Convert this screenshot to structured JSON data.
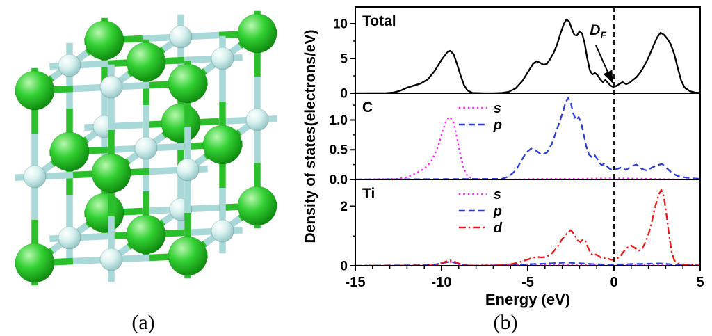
{
  "figure": {
    "caption_a": "(a)",
    "caption_b": "(b)"
  },
  "crystal": {
    "description": "ball-and-stick cubic rock-salt crystal model",
    "large_atom_color": "#33d133",
    "large_atom_highlight": "#b8f7b0",
    "large_atom_dark": "#0c860c",
    "large_bond_color": "#2bbf2b",
    "small_atom_color": "#d8f2f0",
    "small_atom_highlight": "#ffffff",
    "small_atom_dark": "#8fc3c3",
    "small_bond_color": "#a9d8d8"
  },
  "chart_data": {
    "type": "line",
    "xlabel": "Energy (eV)",
    "ylabel": "Density of states(electrons/eV)",
    "xlim": [
      -15,
      5
    ],
    "xtick_values": [
      -15,
      -10,
      -5,
      0,
      5
    ],
    "xtick_labels": [
      "-15",
      "-10",
      "-5",
      "0",
      "5"
    ],
    "x_minor_step": 1,
    "fermi_line": {
      "x": 0,
      "style": "dashed",
      "color": "#000000"
    },
    "annotation": {
      "text": "D",
      "subscript": "F",
      "x": -1.4,
      "y": 8.4,
      "arrow_from": [
        -1.05,
        6.9
      ],
      "arrow_to": [
        -0.1,
        1.6
      ]
    },
    "panels": [
      {
        "label": "Total",
        "ylim": [
          0,
          12.4
        ],
        "ytick_values": [
          0,
          5,
          10
        ],
        "ytick_labels": [
          "0",
          "5",
          "10"
        ],
        "y_minor_step": 2.5,
        "legend": false,
        "series": [
          {
            "name": "Total",
            "color": "#000000",
            "style": "solid",
            "x": [
              -15,
              -13.2,
              -12.8,
              -12.4,
              -12,
              -11.6,
              -11.2,
              -10.8,
              -10.4,
              -10,
              -9.7,
              -9.5,
              -9.3,
              -9.1,
              -8.9,
              -8.7,
              -8.5,
              -8.2,
              -7.5,
              -7,
              -6.5,
              -6.1,
              -5.7,
              -5.3,
              -5,
              -4.7,
              -4.5,
              -4.3,
              -4.1,
              -3.9,
              -3.7,
              -3.5,
              -3.3,
              -3.1,
              -2.9,
              -2.75,
              -2.6,
              -2.45,
              -2.3,
              -2.15,
              -2,
              -1.85,
              -1.7,
              -1.55,
              -1.4,
              -1.25,
              -1.1,
              -0.95,
              -0.8,
              -0.65,
              -0.5,
              -0.35,
              -0.2,
              -0.05,
              0.1,
              0.3,
              0.5,
              0.7,
              0.9,
              1.1,
              1.3,
              1.5,
              1.7,
              1.9,
              2.1,
              2.3,
              2.5,
              2.7,
              2.9,
              3.1,
              3.3,
              3.5,
              3.7,
              3.9,
              4.1,
              4.4,
              4.7,
              5
            ],
            "y": [
              0,
              0.02,
              0.1,
              0.35,
              0.8,
              1.1,
              1.4,
              2,
              3.2,
              4.8,
              5.8,
              6.1,
              5.6,
              4.2,
              2.6,
              1.2,
              0.4,
              0.05,
              0,
              0,
              0.05,
              0.2,
              0.7,
              1.8,
              3,
              4.2,
              4.6,
              4.4,
              4.1,
              4.2,
              4.9,
              5.8,
              7,
              8.6,
              10,
              10.6,
              10.3,
              9.3,
              8.4,
              8.3,
              8.9,
              8.6,
              7.2,
              5,
              3.3,
              2.7,
              2.9,
              2.6,
              2,
              1.6,
              1.9,
              1.5,
              1.1,
              0.9,
              1,
              1.3,
              1.6,
              1.3,
              1.5,
              1.9,
              2.3,
              2.9,
              3.7,
              4.6,
              5.7,
              6.9,
              8,
              8.7,
              8.4,
              7.8,
              7,
              5.6,
              3.6,
              1.8,
              0.8,
              0.3,
              0.1,
              0.05
            ]
          }
        ]
      },
      {
        "label": "C",
        "ylim": [
          0,
          1.45
        ],
        "ytick_values": [
          0,
          0.5,
          1.0
        ],
        "ytick_labels": [
          "0.0",
          "0.5",
          "1.0"
        ],
        "y_minor_step": 0.25,
        "legend": true,
        "series": [
          {
            "name": "s",
            "color": "#ff22ff",
            "style": "dotted",
            "x": [
              -15,
              -12.5,
              -12,
              -11.5,
              -11,
              -10.6,
              -10.2,
              -9.9,
              -9.7,
              -9.5,
              -9.3,
              -9.1,
              -8.9,
              -8.7,
              -8.5,
              -8.2,
              -7.5,
              -6,
              -4,
              -2,
              0,
              2,
              4,
              5
            ],
            "y": [
              0,
              0.01,
              0.04,
              0.1,
              0.18,
              0.3,
              0.55,
              0.85,
              1,
              1.05,
              0.95,
              0.7,
              0.4,
              0.18,
              0.06,
              0.01,
              0,
              0,
              0.01,
              0.01,
              0.02,
              0.01,
              0,
              0
            ]
          },
          {
            "name": "p",
            "color": "#2b3fd6",
            "style": "dashed",
            "x": [
              -15,
              -6.5,
              -6.1,
              -5.7,
              -5.4,
              -5.1,
              -4.8,
              -4.5,
              -4.2,
              -3.9,
              -3.6,
              -3.3,
              -3,
              -2.8,
              -2.65,
              -2.5,
              -2.35,
              -2.2,
              -2.05,
              -1.9,
              -1.75,
              -1.6,
              -1.45,
              -1.3,
              -1.15,
              -1,
              -0.85,
              -0.7,
              -0.55,
              -0.4,
              -0.25,
              -0.1,
              0.1,
              0.4,
              0.7,
              1,
              1.3,
              1.6,
              1.9,
              2.2,
              2.5,
              2.8,
              3.1,
              3.4,
              3.7,
              4,
              4.5,
              5
            ],
            "y": [
              0,
              0.01,
              0.05,
              0.15,
              0.3,
              0.45,
              0.52,
              0.48,
              0.42,
              0.45,
              0.6,
              0.85,
              1.1,
              1.3,
              1.37,
              1.28,
              1.1,
              1,
              1.05,
              0.95,
              0.75,
              0.55,
              0.42,
              0.38,
              0.42,
              0.36,
              0.28,
              0.24,
              0.27,
              0.22,
              0.18,
              0.16,
              0.17,
              0.2,
              0.16,
              0.22,
              0.25,
              0.18,
              0.15,
              0.2,
              0.24,
              0.26,
              0.18,
              0.1,
              0.06,
              0.04,
              0.02,
              0.01
            ]
          }
        ]
      },
      {
        "label": "Ti",
        "ylim": [
          0,
          2.9
        ],
        "ytick_values": [
          0,
          2
        ],
        "ytick_labels": [
          "0",
          "2"
        ],
        "y_minor_step": 1,
        "legend": true,
        "series": [
          {
            "name": "s",
            "color": "#ff22ff",
            "style": "dotted",
            "x": [
              -15,
              -10.8,
              -10.3,
              -9.9,
              -9.6,
              -9.3,
              -9,
              -8.6,
              -8,
              -6,
              -5,
              -4,
              -3,
              -2,
              -1,
              0,
              1,
              2,
              3,
              4,
              5
            ],
            "y": [
              0,
              0.01,
              0.04,
              0.1,
              0.14,
              0.11,
              0.05,
              0.01,
              0.01,
              0.02,
              0.03,
              0.04,
              0.05,
              0.04,
              0.03,
              0.03,
              0.03,
              0.04,
              0.03,
              0.01,
              0
            ]
          },
          {
            "name": "p",
            "color": "#2b3fd6",
            "style": "dashed",
            "x": [
              -15,
              -10.6,
              -10.1,
              -9.7,
              -9.4,
              -9.1,
              -8.8,
              -8.4,
              -7,
              -6,
              -5.2,
              -4.6,
              -4,
              -3.4,
              -2.9,
              -2.4,
              -1.9,
              -1.4,
              -0.9,
              -0.4,
              0.1,
              0.6,
              1.1,
              1.6,
              2.1,
              2.6,
              3.1,
              3.6,
              4.1,
              5
            ],
            "y": [
              0,
              0.02,
              0.07,
              0.12,
              0.13,
              0.08,
              0.03,
              0.01,
              0.01,
              0.02,
              0.04,
              0.06,
              0.07,
              0.09,
              0.11,
              0.1,
              0.08,
              0.06,
              0.05,
              0.04,
              0.04,
              0.05,
              0.06,
              0.06,
              0.07,
              0.08,
              0.06,
              0.03,
              0.02,
              0.01
            ]
          },
          {
            "name": "d",
            "color": "#ea1515",
            "style": "dashdot",
            "x": [
              -15,
              -10.6,
              -10.2,
              -9.8,
              -9.5,
              -9.2,
              -8.9,
              -8.5,
              -7.5,
              -6.5,
              -6,
              -5.6,
              -5.2,
              -4.8,
              -4.5,
              -4.2,
              -3.9,
              -3.6,
              -3.3,
              -3,
              -2.7,
              -2.5,
              -2.3,
              -2.1,
              -1.95,
              -1.8,
              -1.65,
              -1.5,
              -1.35,
              -1.2,
              -1.05,
              -0.9,
              -0.75,
              -0.6,
              -0.45,
              -0.3,
              -0.15,
              0,
              0.2,
              0.4,
              0.6,
              0.8,
              1,
              1.2,
              1.4,
              1.6,
              1.8,
              2,
              2.2,
              2.4,
              2.6,
              2.75,
              2.9,
              3.05,
              3.2,
              3.35,
              3.5,
              3.7,
              4,
              4.5,
              5
            ],
            "y": [
              0,
              0.01,
              0.05,
              0.13,
              0.18,
              0.13,
              0.05,
              0.01,
              0.01,
              0.02,
              0.05,
              0.1,
              0.17,
              0.25,
              0.3,
              0.28,
              0.3,
              0.42,
              0.62,
              0.9,
              1.1,
              1.2,
              1.05,
              0.85,
              0.8,
              0.88,
              0.82,
              0.6,
              0.42,
              0.35,
              0.38,
              0.33,
              0.27,
              0.24,
              0.27,
              0.23,
              0.2,
              0.2,
              0.25,
              0.35,
              0.5,
              0.62,
              0.68,
              0.6,
              0.5,
              0.55,
              0.75,
              1.05,
              1.5,
              2,
              2.4,
              2.55,
              2.3,
              1.7,
              1,
              0.45,
              0.18,
              0.08,
              0.04,
              0.02,
              0.01
            ]
          }
        ]
      }
    ]
  }
}
